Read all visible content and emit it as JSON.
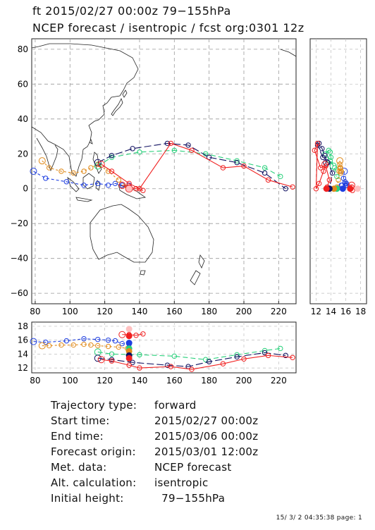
{
  "header": {
    "line1": "ft 2015/02/27 00:00z  79−155hPa",
    "line2": "NCEP forecast / isentropic / fcst org:0301 12z"
  },
  "map_axes": {
    "x_ticks": [
      "80",
      "100",
      "120",
      "140",
      "160",
      "180",
      "200",
      "220"
    ],
    "y_ticks": [
      "80",
      "60",
      "40",
      "20",
      "0",
      "−20",
      "−40",
      "−60"
    ]
  },
  "side_axes": {
    "x_ticks": [
      "12",
      "14",
      "16",
      "18"
    ]
  },
  "bottom_axes": {
    "y_ticks": [
      "18",
      "16",
      "14",
      "12"
    ]
  },
  "colors": {
    "blue": "#1f3fe0",
    "orange": "#e08a1a",
    "green": "#27d07a",
    "red": "#f02020",
    "navy": "#101060",
    "pink": "#ffc0c0"
  },
  "chart_data": {
    "type": "trajectory-map",
    "lon_range": [
      78,
      230
    ],
    "lat_range": [
      -66,
      86
    ],
    "height_range": [
      11.3,
      18.6
    ],
    "trajectories": [
      {
        "color": "blue",
        "lon": [
          79,
          86,
          98,
          108,
          116,
          122,
          126,
          130,
          134
        ],
        "lat": [
          10,
          6,
          4,
          2,
          3,
          2,
          3,
          2,
          2
        ],
        "height": [
          15.8,
          15.7,
          15.9,
          16.2,
          16.1,
          16.0,
          15.9,
          15.5,
          15.4
        ]
      },
      {
        "color": "orange",
        "lon": [
          84,
          88,
          95,
          102,
          108,
          112,
          116,
          122,
          128,
          133
        ],
        "lat": [
          16,
          12,
          10,
          9,
          10,
          12,
          14,
          10,
          5,
          1
        ],
        "height": [
          15.2,
          15.2,
          15.3,
          15.3,
          15.4,
          15.3,
          15.2,
          15.1,
          15.0,
          14.8
        ]
      },
      {
        "color": "green",
        "lon": [
          116,
          124,
          140,
          160,
          178,
          196,
          212,
          221
        ],
        "lat": [
          13,
          18,
          21,
          22,
          20,
          16,
          12,
          7
        ],
        "height": [
          14.3,
          14.0,
          13.9,
          13.7,
          13.2,
          13.9,
          14.5,
          14.8
        ]
      },
      {
        "color": "navy",
        "lon": [
          116,
          124,
          136,
          156,
          168,
          180,
          196,
          212,
          224
        ],
        "lat": [
          15,
          19,
          23,
          26,
          25,
          18,
          15,
          9,
          0
        ],
        "height": [
          13.4,
          13.2,
          12.8,
          12.4,
          12.2,
          12.9,
          13.6,
          14.2,
          13.8
        ]
      },
      {
        "color": "red",
        "lon": [
          118,
          124,
          134,
          140,
          158,
          170,
          188,
          200,
          214,
          228
        ],
        "lat": [
          14,
          10,
          3,
          0,
          26,
          22,
          12,
          13,
          5,
          1
        ],
        "height": [
          13.2,
          13.0,
          12.4,
          12.0,
          12.2,
          11.8,
          12.6,
          13.3,
          13.8,
          13.5
        ]
      },
      {
        "color": "red",
        "lon": [
          130,
          134,
          138,
          142
        ],
        "lat": [
          2,
          1,
          0,
          -1
        ],
        "height": [
          16.8,
          16.8,
          16.7,
          16.9
        ]
      }
    ]
  },
  "info": {
    "rows": [
      {
        "label": "Trajectory type:",
        "value": "forward"
      },
      {
        "label": "Start time:",
        "value": "2015/02/27 00:00z"
      },
      {
        "label": "End time:",
        "value": "2015/03/06 00:00z"
      },
      {
        "label": "Forecast origin:",
        "value": "2015/03/01 12:00z"
      },
      {
        "label": "Met. data:",
        "value": "NCEP forecast"
      },
      {
        "label": "Alt. calculation:",
        "value": "isentropic"
      },
      {
        "label": "Initial height:",
        "value": "  79−155hPa"
      }
    ]
  },
  "footer": "15/ 3/ 2 04:35:38 page: 1"
}
